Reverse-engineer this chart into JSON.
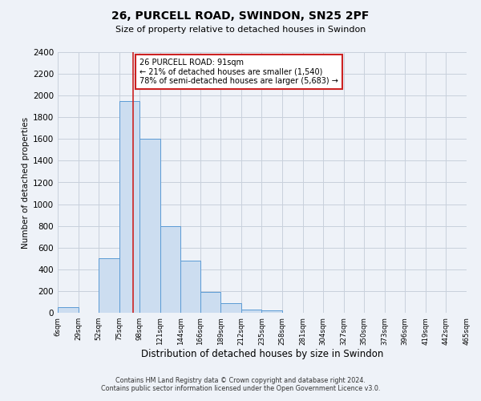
{
  "title_line1": "26, PURCELL ROAD, SWINDON, SN25 2PF",
  "title_line2": "Size of property relative to detached houses in Swindon",
  "xlabel": "Distribution of detached houses by size in Swindon",
  "ylabel": "Number of detached properties",
  "bin_edges": [
    6,
    29,
    52,
    75,
    98,
    121,
    144,
    166,
    189,
    212,
    235,
    258,
    281,
    304,
    327,
    350,
    373,
    396,
    419,
    442,
    465
  ],
  "bin_heights": [
    50,
    0,
    500,
    1950,
    1600,
    800,
    480,
    190,
    90,
    30,
    20,
    0,
    0,
    0,
    0,
    0,
    0,
    0,
    0,
    0
  ],
  "bar_facecolor": "#ccddf0",
  "bar_edgecolor": "#5b9bd5",
  "grid_color": "#c8d0dc",
  "background_color": "#eef2f8",
  "vline_x": 91,
  "vline_color": "#cc2222",
  "annotation_title": "26 PURCELL ROAD: 91sqm",
  "annotation_line1": "← 21% of detached houses are smaller (1,540)",
  "annotation_line2": "78% of semi-detached houses are larger (5,683) →",
  "annotation_box_edgecolor": "#cc2222",
  "annotation_box_facecolor": "#ffffff",
  "ylim": [
    0,
    2400
  ],
  "yticks": [
    0,
    200,
    400,
    600,
    800,
    1000,
    1200,
    1400,
    1600,
    1800,
    2000,
    2200,
    2400
  ],
  "xtick_labels": [
    "6sqm",
    "29sqm",
    "52sqm",
    "75sqm",
    "98sqm",
    "121sqm",
    "144sqm",
    "166sqm",
    "189sqm",
    "212sqm",
    "235sqm",
    "258sqm",
    "281sqm",
    "304sqm",
    "327sqm",
    "350sqm",
    "373sqm",
    "396sqm",
    "419sqm",
    "442sqm",
    "465sqm"
  ],
  "footer_line1": "Contains HM Land Registry data © Crown copyright and database right 2024.",
  "footer_line2": "Contains public sector information licensed under the Open Government Licence v3.0."
}
